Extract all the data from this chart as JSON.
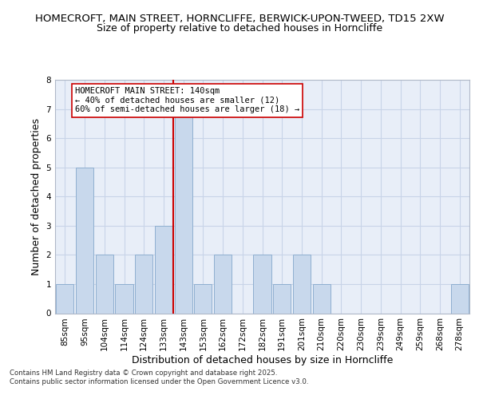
{
  "title_line1": "HOMECROFT, MAIN STREET, HORNCLIFFE, BERWICK-UPON-TWEED, TD15 2XW",
  "title_line2": "Size of property relative to detached houses in Horncliffe",
  "xlabel": "Distribution of detached houses by size in Horncliffe",
  "ylabel": "Number of detached properties",
  "bar_labels": [
    "85sqm",
    "95sqm",
    "104sqm",
    "114sqm",
    "124sqm",
    "133sqm",
    "143sqm",
    "153sqm",
    "162sqm",
    "172sqm",
    "182sqm",
    "191sqm",
    "201sqm",
    "210sqm",
    "220sqm",
    "230sqm",
    "239sqm",
    "249sqm",
    "259sqm",
    "268sqm",
    "278sqm"
  ],
  "bar_values": [
    1,
    5,
    2,
    1,
    2,
    3,
    7,
    1,
    2,
    0,
    2,
    1,
    2,
    1,
    0,
    0,
    0,
    0,
    0,
    0,
    1
  ],
  "bar_color": "#c8d8ec",
  "bar_edge_color": "#8fafd0",
  "vline_x_index": 6,
  "vline_color": "#cc0000",
  "annotation_line1": "HOMECROFT MAIN STREET: 140sqm",
  "annotation_line2": "← 40% of detached houses are smaller (12)",
  "annotation_line3": "60% of semi-detached houses are larger (18) →",
  "annotation_box_color": "white",
  "annotation_box_edge_color": "#cc0000",
  "ylim": [
    0,
    8
  ],
  "yticks": [
    0,
    1,
    2,
    3,
    4,
    5,
    6,
    7,
    8
  ],
  "grid_color": "#c8d4e8",
  "background_color": "#e8eef8",
  "footer_line1": "Contains HM Land Registry data © Crown copyright and database right 2025.",
  "footer_line2": "Contains public sector information licensed under the Open Government Licence v3.0.",
  "title_fontsize": 9.5,
  "subtitle_fontsize": 9,
  "axis_label_fontsize": 9,
  "tick_fontsize": 7.5,
  "annotation_fontsize": 7.5
}
